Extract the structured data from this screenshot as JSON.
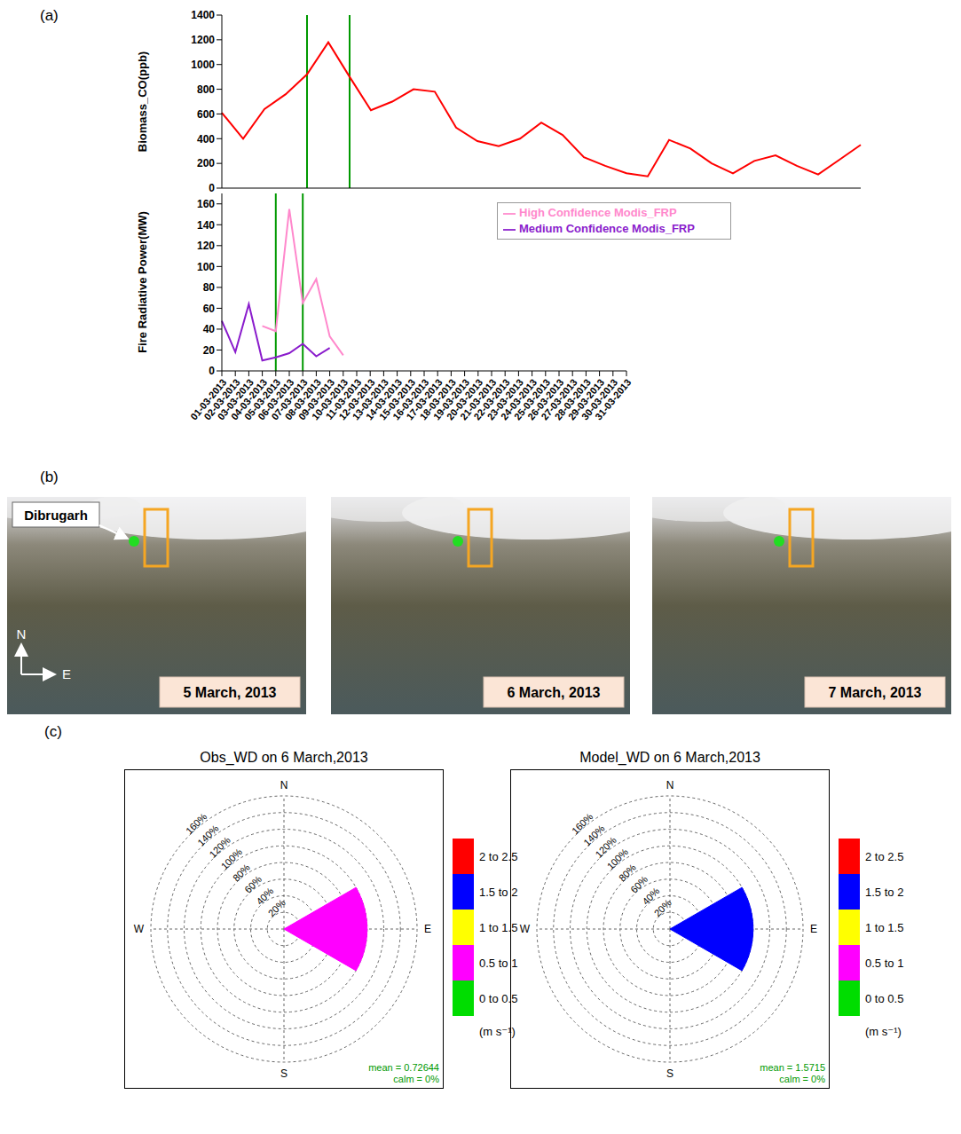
{
  "panel_labels": [
    "(a)",
    "(b)",
    "(c)"
  ],
  "chart_data": [
    {
      "type": "line",
      "categories": [
        "01-03-2013",
        "02-03-2013",
        "03-03-2013",
        "04-03-2013",
        "05-03-2013",
        "06-03-2013",
        "07-03-2013",
        "08-03-2013",
        "09-03-2013",
        "10-03-2013",
        "11-03-2013",
        "12-03-2013",
        "13-03-2013",
        "14-03-2013",
        "15-03-2013",
        "16-03-2013",
        "17-03-2013",
        "18-03-2013",
        "19-03-2013",
        "20-03-2013",
        "21-03-2013",
        "22-03-2013",
        "23-03-2013",
        "24-03-2013",
        "25-03-2013",
        "26-03-2013",
        "27-03-2013",
        "28-03-2013",
        "29-03-2013",
        "30-03-2013",
        "31-03-2013"
      ],
      "ylabel": "Biomass_CO(ppb)",
      "ylim": [
        0,
        1400
      ],
      "yticks": [
        0,
        200,
        400,
        600,
        800,
        1000,
        1200,
        1400
      ],
      "tick_labels": "y",
      "vlines": {
        "x": [
          "05-03-2013",
          "07-03-2013"
        ],
        "color": "#009900"
      },
      "series": [
        {
          "color": "#ff0000",
          "values": [
            610,
            400,
            640,
            760,
            920,
            1180,
            900,
            630,
            700,
            800,
            780,
            490,
            380,
            340,
            400,
            530,
            430,
            250,
            180,
            120,
            95,
            390,
            320,
            200,
            120,
            220,
            265,
            180,
            110,
            230,
            350
          ]
        }
      ]
    },
    {
      "type": "line",
      "categories": [
        "01-03-2013",
        "02-03-2013",
        "03-03-2013",
        "04-03-2013",
        "05-03-2013",
        "06-03-2013",
        "07-03-2013",
        "08-03-2013",
        "09-03-2013",
        "10-03-2013",
        "11-03-2013",
        "12-03-2013",
        "13-03-2013",
        "14-03-2013",
        "15-03-2013",
        "16-03-2013",
        "17-03-2013",
        "18-03-2013",
        "19-03-2013",
        "20-03-2013",
        "21-03-2013",
        "22-03-2013",
        "23-03-2013",
        "24-03-2013",
        "25-03-2013",
        "26-03-2013",
        "27-03-2013",
        "28-03-2013",
        "29-03-2013",
        "30-03-2013",
        "31-03-2013"
      ],
      "ylabel": "Fire Radiative Power(MW)",
      "ylim": [
        0,
        170
      ],
      "yticks": [
        0,
        20,
        40,
        60,
        80,
        100,
        120,
        140,
        160
      ],
      "legend": "top",
      "vlines": {
        "x": [
          "05-03-2013",
          "07-03-2013"
        ],
        "color": "#009900"
      },
      "series": [
        {
          "name": "High Confidence Modis_FRP",
          "color": "#ff88cc",
          "values": [
            null,
            null,
            null,
            43,
            38,
            155,
            65,
            88,
            33,
            15,
            null,
            null,
            null,
            null,
            null,
            null,
            null,
            null,
            null,
            null,
            null,
            null,
            null,
            null,
            null,
            null,
            null,
            null,
            null,
            null,
            null
          ]
        },
        {
          "name": "Medium Confidence Modis_FRP",
          "color": "#8a1ccc",
          "values": [
            48,
            18,
            64,
            10,
            13,
            17,
            26,
            14,
            22,
            null,
            null,
            null,
            null,
            null,
            null,
            null,
            null,
            null,
            null,
            null,
            null,
            null,
            null,
            null,
            null,
            null,
            null,
            null,
            null,
            null,
            null
          ]
        }
      ]
    },
    {
      "type": "wind_rose",
      "title": "Obs_WD on 6 March,2013",
      "ylim": [
        0,
        160
      ],
      "yticks": [
        {
          "value": 20,
          "label": "20%"
        },
        {
          "value": 40,
          "label": "40%"
        },
        {
          "value": 60,
          "label": "60%"
        },
        {
          "value": 80,
          "label": "80%"
        },
        {
          "value": 100,
          "label": "100%"
        },
        {
          "value": 120,
          "label": "120%"
        },
        {
          "value": 140,
          "label": "140%"
        },
        {
          "value": 160,
          "label": "160%"
        }
      ],
      "compass": [
        {
          "angle": 0,
          "label": "N"
        },
        {
          "angle": 90,
          "label": "E"
        },
        {
          "angle": 180,
          "label": "S"
        },
        {
          "angle": 270,
          "label": "W"
        }
      ],
      "sectors": [
        {
          "from": 60,
          "to": 120,
          "frequency": 100,
          "speed_bin": "0.5 to 1"
        }
      ],
      "speed_bins": [
        {
          "label": "0 to 0.5",
          "color": "#00dd00"
        },
        {
          "label": "0.5 to 1",
          "color": "#ff00ff"
        },
        {
          "label": "1 to 1.5",
          "color": "#ffff00"
        },
        {
          "label": "1.5 to 2",
          "color": "#0000ff"
        },
        {
          "label": "2 to 2.5",
          "color": "#ff0000"
        }
      ],
      "speed_unit": "(m s⁻¹)",
      "notes": [
        "mean = 0.72644",
        "calm = 0%"
      ]
    },
    {
      "type": "wind_rose",
      "title": "Model_WD on 6 March,2013",
      "ylim": [
        0,
        160
      ],
      "yticks": [
        {
          "value": 20,
          "label": "20%"
        },
        {
          "value": 40,
          "label": "40%"
        },
        {
          "value": 60,
          "label": "60%"
        },
        {
          "value": 80,
          "label": "80%"
        },
        {
          "value": 100,
          "label": "100%"
        },
        {
          "value": 120,
          "label": "120%"
        },
        {
          "value": 140,
          "label": "140%"
        },
        {
          "value": 160,
          "label": "160%"
        }
      ],
      "compass": [
        {
          "angle": 0,
          "label": "N"
        },
        {
          "angle": 90,
          "label": "E"
        },
        {
          "angle": 180,
          "label": "S"
        },
        {
          "angle": 270,
          "label": "W"
        }
      ],
      "sectors": [
        {
          "from": 60,
          "to": 120,
          "frequency": 100,
          "speed_bin": "1.5 to 2"
        }
      ],
      "speed_bins": [
        {
          "label": "0 to 0.5",
          "color": "#00dd00"
        },
        {
          "label": "0.5 to 1",
          "color": "#ff00ff"
        },
        {
          "label": "1 to 1.5",
          "color": "#ffff00"
        },
        {
          "label": "1.5 to 2",
          "color": "#0000ff"
        },
        {
          "label": "2 to 2.5",
          "color": "#ff0000"
        }
      ],
      "speed_unit": "(m s⁻¹)",
      "notes": [
        "mean = 1.5715",
        "calm = 0%"
      ]
    }
  ],
  "maps": [
    {
      "date": "5 March, 2013",
      "marker_label": "Dibrugarh",
      "compass": [
        "N",
        "E"
      ]
    },
    {
      "date": "6 March, 2013"
    },
    {
      "date": "7 March, 2013"
    }
  ]
}
